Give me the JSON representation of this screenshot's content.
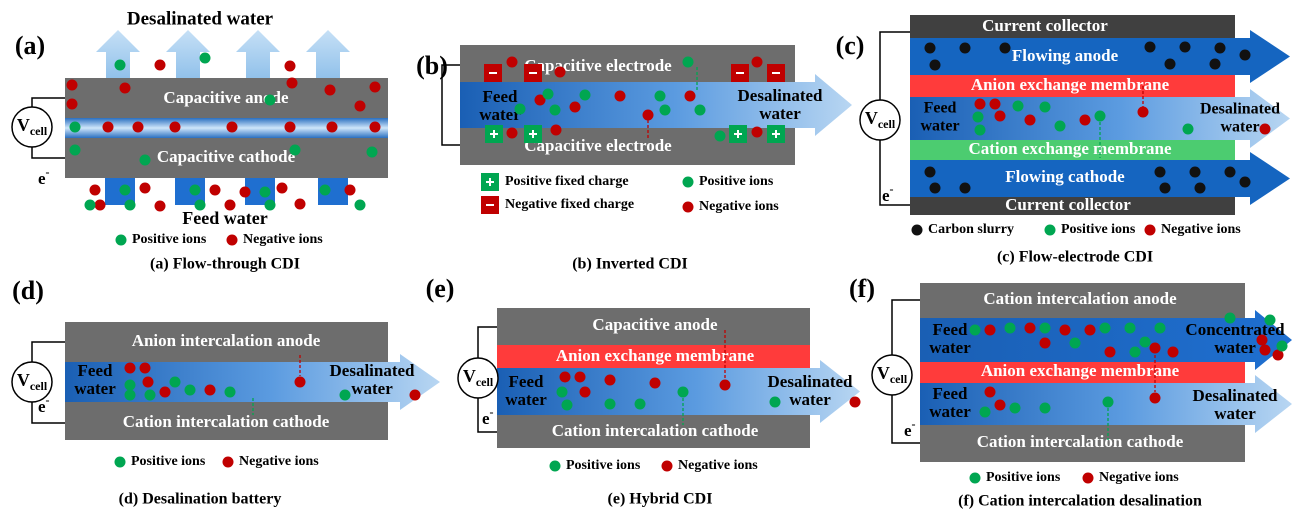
{
  "panels": [
    {
      "label": "(a)",
      "outlet": "Desalinated water",
      "top": "Capacitive anode",
      "bottom": "Capacitive cathode",
      "voltage": {
        "symbol": "V",
        "subscript": "cell"
      },
      "electron": {
        "symbol": "e",
        "superscript": "-"
      },
      "inlet": "Feed water",
      "legend": [
        "Positive ions",
        "Negative ions"
      ],
      "caption": "(a) Flow-through CDI"
    },
    {
      "label": "(b)",
      "top": "Capacitive electrode",
      "bottom": "Capacitive electrode",
      "inlet": [
        "Feed",
        "water"
      ],
      "outlet": [
        "Desalinated",
        "water"
      ],
      "legend": [
        "Positive fixed charge",
        "Negative fixed charge",
        "Positive ions",
        "Negative ions"
      ],
      "caption": "(b) Inverted CDI"
    },
    {
      "label": "(c)",
      "top": "Current collector",
      "anode": "Flowing anode",
      "upper_membrane": "Anion exchange membrane",
      "inlet": [
        "Feed",
        "water"
      ],
      "outlet": [
        "Desalinated",
        "water"
      ],
      "lower_membrane": "Cation exchange membrane",
      "cathode": "Flowing cathode",
      "bottom": "Current collector",
      "voltage": {
        "symbol": "V",
        "subscript": "cell"
      },
      "electron": {
        "symbol": "e",
        "superscript": "-"
      },
      "legend": [
        "Carbon slurry",
        "Positive ions",
        "Negative ions"
      ],
      "caption": "(c) Flow-electrode CDI"
    },
    {
      "label": "(d)",
      "top": "Anion intercalation anode",
      "inlet": [
        "Feed",
        "water"
      ],
      "outlet": [
        "Desalinated",
        "water"
      ],
      "bottom": "Cation intercalation cathode",
      "voltage": {
        "symbol": "V",
        "subscript": "cell"
      },
      "electron": {
        "symbol": "e",
        "superscript": "-"
      },
      "legend": [
        "Positive ions",
        "Negative ions"
      ],
      "caption": "(d) Desalination battery"
    },
    {
      "label": "(e)",
      "top": "Capacitive anode",
      "membrane": "Anion exchange membrane",
      "inlet": [
        "Feed",
        "water"
      ],
      "outlet": [
        "Desalinated",
        "water"
      ],
      "bottom": "Cation intercalation cathode",
      "voltage": {
        "symbol": "V",
        "subscript": "cell"
      },
      "electron": {
        "symbol": "e",
        "superscript": "-"
      },
      "legend": [
        "Positive ions",
        "Negative ions"
      ],
      "caption": "(e) Hybrid CDI"
    },
    {
      "label": "(f)",
      "top": "Cation intercalation anode",
      "upper_inlet": [
        "Feed",
        "water"
      ],
      "upper_outlet": [
        "Concentrated",
        "water"
      ],
      "membrane": "Anion exchange membrane",
      "lower_inlet": [
        "Feed",
        "water"
      ],
      "lower_outlet": [
        "Desalinated",
        "water"
      ],
      "bottom": "Cation intercalation cathode",
      "voltage": {
        "symbol": "V",
        "subscript": "cell"
      },
      "electron": {
        "symbol": "e",
        "superscript": "-"
      },
      "legend": [
        "Positive ions",
        "Negative ions"
      ],
      "caption": "(f) Cation intercalation desalination"
    }
  ]
}
